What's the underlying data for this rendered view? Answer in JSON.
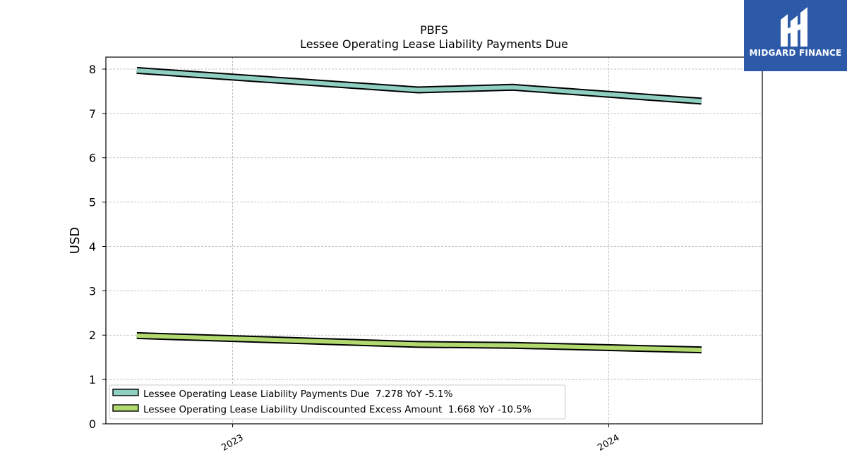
{
  "logo": {
    "text": "MIDGARD FINANCE"
  },
  "chart_data": {
    "type": "line",
    "title": "PBFS",
    "subtitle": "Lessee Operating Lease Liability Payments Due",
    "ylabel": "USD",
    "xlabel": "",
    "ylim": [
      0,
      8.27
    ],
    "xlim": [
      "2022-08-31",
      "2024-05-29"
    ],
    "yticks": [
      0,
      1,
      2,
      3,
      4,
      5,
      6,
      7,
      8
    ],
    "xticks": [
      {
        "date": "2023-01-01",
        "label": "2023"
      },
      {
        "date": "2024-01-01",
        "label": "2024"
      }
    ],
    "grid": true,
    "legend_position": "lower-left",
    "x": [
      "2022-09-30",
      "2023-06-30",
      "2023-09-30",
      "2024-03-31"
    ],
    "series": [
      {
        "name": "Lessee Operating Lease Liability Payments Due",
        "legend_label": "Lessee Operating Lease Liability Payments Due  7.278 YoY -5.1%",
        "color": "#8ecfc2",
        "values": [
          7.97,
          7.53,
          7.59,
          7.278
        ]
      },
      {
        "name": "Lessee Operating Lease Liability Undiscounted Excess Amount",
        "legend_label": "Lessee Operating Lease Liability Undiscounted Excess Amount  1.668 YoY -10.5%",
        "color": "#b2d96f",
        "values": [
          1.99,
          1.79,
          1.77,
          1.668
        ]
      }
    ]
  }
}
